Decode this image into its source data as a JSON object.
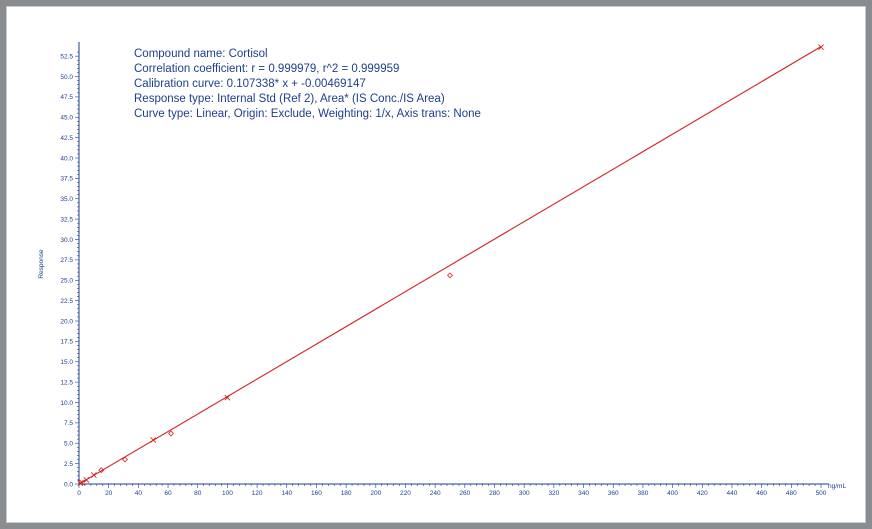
{
  "info": {
    "compound": "Compound name: Cortisol",
    "correlation": "Correlation coefficient: r = 0.999979, r^2 = 0.999959",
    "calibration": "Calibration curve: 0.107338* x + -0.00469147",
    "response_type": "Response type: Internal Std (Ref 2), Area* (IS Conc./IS Area)",
    "curve_type": "Curve type: Linear, Origin: Exclude, Weighting: 1/x, Axis trans: None"
  },
  "colors": {
    "background": "#8a8d90",
    "panel": "#ffffff",
    "axis": "#1d3f8e",
    "fit_line": "#d62020",
    "marker": "#d62020",
    "text": "#1d3f8e"
  },
  "chart_data": {
    "type": "scatter",
    "ylabel": "Response",
    "xunit_label": "ng/mL",
    "xlim": [
      0,
      500
    ],
    "ylim": [
      0,
      53.5
    ],
    "x_ticks": [
      0,
      20,
      40,
      60,
      80,
      100,
      120,
      140,
      160,
      180,
      200,
      220,
      240,
      260,
      280,
      300,
      320,
      340,
      360,
      380,
      400,
      420,
      440,
      460,
      480,
      500
    ],
    "y_ticks": [
      "0.0",
      "2.5",
      "5.0",
      "7.5",
      "10.0",
      "12.5",
      "15.0",
      "17.5",
      "20.0",
      "22.5",
      "25.0",
      "27.5",
      "30.0",
      "32.5",
      "35.0",
      "37.5",
      "40.0",
      "42.5",
      "45.0",
      "47.5",
      "50.0",
      "52.5"
    ],
    "fit_line": {
      "slope": 0.107338,
      "intercept": -0.00469147
    },
    "points": [
      {
        "x": 1,
        "y": 0.1,
        "marker": "x"
      },
      {
        "x": 2,
        "y": 0.2,
        "marker": "x"
      },
      {
        "x": 5,
        "y": 0.5,
        "marker": "x"
      },
      {
        "x": 10,
        "y": 1.1,
        "marker": "x"
      },
      {
        "x": 15,
        "y": 1.7,
        "marker": "diamond"
      },
      {
        "x": 31,
        "y": 3.0,
        "marker": "diamond"
      },
      {
        "x": 50,
        "y": 5.4,
        "marker": "x"
      },
      {
        "x": 62,
        "y": 6.2,
        "marker": "diamond"
      },
      {
        "x": 100,
        "y": 10.6,
        "marker": "x"
      },
      {
        "x": 250,
        "y": 25.6,
        "marker": "diamond"
      },
      {
        "x": 500,
        "y": 53.6,
        "marker": "x"
      }
    ],
    "grid": false,
    "legend": "none"
  }
}
